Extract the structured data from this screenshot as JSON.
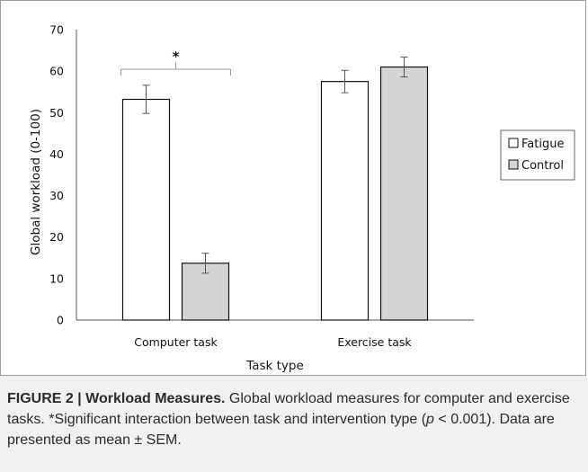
{
  "chart_data": {
    "type": "bar",
    "categories": [
      "Computer task",
      "Exercise task"
    ],
    "series": [
      {
        "name": "Fatigue",
        "values": [
          53.2,
          57.5
        ],
        "errors": [
          3.4,
          2.7
        ],
        "color": "#ffffff"
      },
      {
        "name": "Control",
        "values": [
          13.7,
          61.0
        ],
        "errors": [
          2.4,
          2.4
        ],
        "color": "#d4d4d4"
      }
    ],
    "xlabel": "Task type",
    "ylabel": "Global workload (0-100)",
    "ylim": [
      0,
      70
    ],
    "yticks": [
      0,
      10,
      20,
      30,
      40,
      50,
      60,
      70
    ],
    "grid": false,
    "legend_position": "right",
    "annotations": [
      {
        "text": "*",
        "between_series_in_category": "Computer task"
      }
    ],
    "bar_stroke": "#111111"
  },
  "caption": {
    "label": "FIGURE 2 | Workload Measures.",
    "text_before_p": " Global workload measures for computer and exercise tasks. *Significant interaction between task and intervention type (",
    "p_symbol": "p",
    "text_after_p": " < 0.001). Data are presented as mean ± SEM."
  }
}
